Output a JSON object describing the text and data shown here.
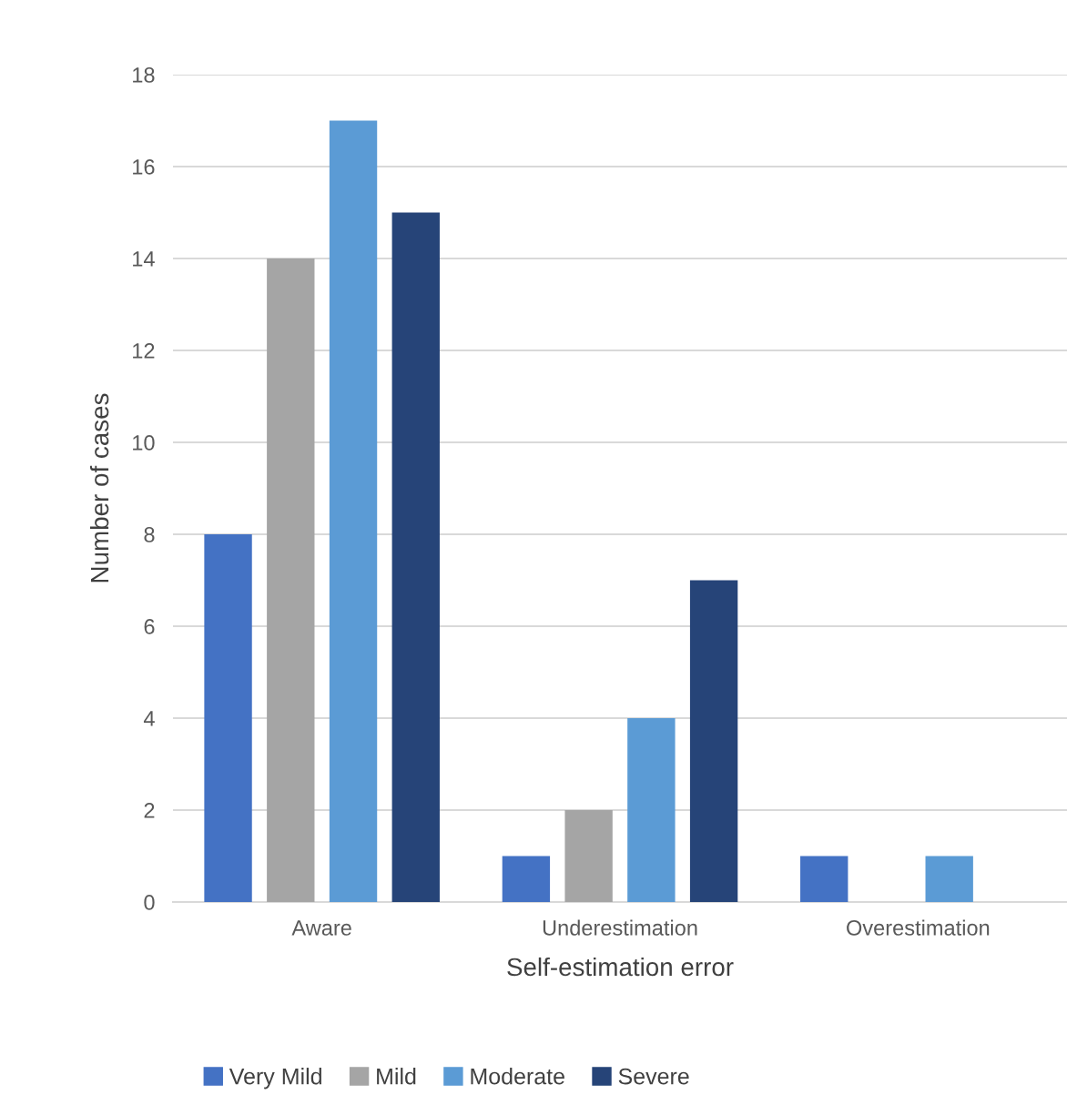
{
  "chart_data": {
    "type": "bar",
    "xlabel": "Self-estimation error",
    "ylabel": "Number of cases",
    "categories": [
      "Aware",
      "Underestimation",
      "Overestimation"
    ],
    "series": [
      {
        "name": "Very Mild",
        "color": "#4472c4",
        "values": [
          8,
          1,
          1
        ]
      },
      {
        "name": "Mild",
        "color": "#a5a5a5",
        "values": [
          14,
          2,
          0
        ]
      },
      {
        "name": "Moderate",
        "color": "#5b9bd5",
        "values": [
          17,
          4,
          1
        ]
      },
      {
        "name": "Severe",
        "color": "#264478",
        "values": [
          15,
          7,
          0
        ]
      }
    ],
    "ylim": [
      0,
      18
    ],
    "yticks": [
      0,
      2,
      4,
      6,
      8,
      10,
      12,
      14,
      16,
      18
    ],
    "grid": "y",
    "legend": "bottom"
  }
}
